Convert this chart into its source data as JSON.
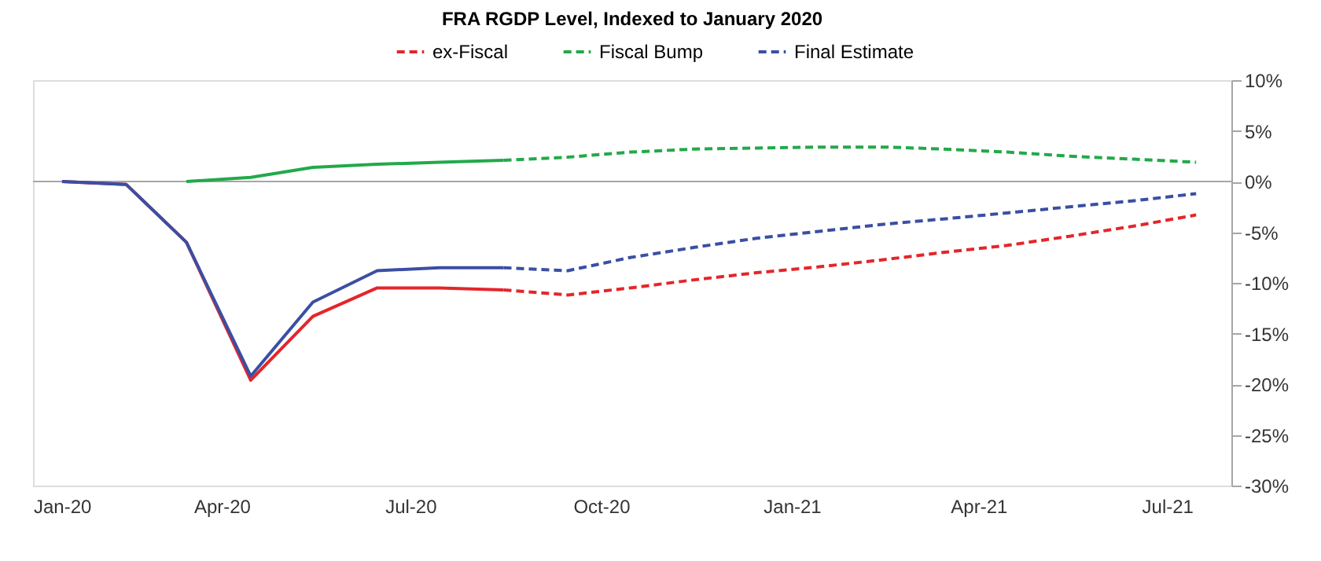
{
  "chart_data": {
    "type": "line",
    "title": "FRA RGDP Level, Indexed to January 2020",
    "series": [
      {
        "color": "#e3262b",
        "line_style": "solid",
        "x": [
          "2020-01-15",
          "2020-02-15",
          "2020-03-15",
          "2020-04-15",
          "2020-05-15",
          "2020-06-15",
          "2020-07-15",
          "2020-08-15"
        ],
        "values": [
          0,
          -0.3,
          -6.0,
          -19.6,
          -13.3,
          -10.5,
          -10.5,
          -10.7
        ]
      },
      {
        "color": "#22a94a",
        "line_style": "solid",
        "x": [
          "2020-03-15",
          "2020-04-15",
          "2020-05-15",
          "2020-06-15",
          "2020-07-15",
          "2020-08-15"
        ],
        "values": [
          0,
          0.4,
          1.4,
          1.7,
          1.9,
          2.1
        ]
      },
      {
        "color": "#3a4fa3",
        "line_style": "solid",
        "x": [
          "2020-01-15",
          "2020-02-15",
          "2020-03-15",
          "2020-04-15",
          "2020-05-15",
          "2020-06-15",
          "2020-07-15",
          "2020-08-15"
        ],
        "values": [
          0,
          -0.3,
          -6.0,
          -19.2,
          -11.9,
          -8.8,
          -8.5,
          -8.5
        ]
      },
      {
        "name": "ex-Fiscal",
        "color": "#e3262b",
        "line_style": "dashed",
        "x": [
          "2020-08-15",
          "2020-09-15",
          "2020-10-15",
          "2020-11-15",
          "2020-12-15",
          "2021-01-15",
          "2021-02-15",
          "2021-03-15",
          "2021-04-15",
          "2021-05-15",
          "2021-06-15",
          "2021-07-15"
        ],
        "values": [
          -10.7,
          -11.2,
          -10.5,
          -9.7,
          -9.0,
          -8.4,
          -7.7,
          -7.0,
          -6.3,
          -5.4,
          -4.4,
          -3.3
        ]
      },
      {
        "name": "Fiscal Bump",
        "color": "#22a94a",
        "line_style": "dashed",
        "x": [
          "2020-08-15",
          "2020-09-15",
          "2020-10-15",
          "2020-11-15",
          "2020-12-15",
          "2021-01-15",
          "2021-02-15",
          "2021-03-15",
          "2021-04-15",
          "2021-05-15",
          "2021-06-15",
          "2021-07-15"
        ],
        "values": [
          2.1,
          2.4,
          2.9,
          3.2,
          3.3,
          3.4,
          3.4,
          3.2,
          2.9,
          2.5,
          2.2,
          1.9
        ]
      },
      {
        "name": "Final Estimate",
        "color": "#3a4fa3",
        "line_style": "dashed",
        "x": [
          "2020-08-15",
          "2020-09-15",
          "2020-10-15",
          "2020-11-15",
          "2020-12-15",
          "2021-01-15",
          "2021-02-15",
          "2021-03-15",
          "2021-04-15",
          "2021-05-15",
          "2021-06-15",
          "2021-07-15"
        ],
        "values": [
          -8.5,
          -8.8,
          -7.5,
          -6.5,
          -5.6,
          -4.9,
          -4.2,
          -3.7,
          -3.1,
          -2.5,
          -1.9,
          -1.2
        ]
      }
    ],
    "xlim": [
      "2020-01-01",
      "2021-08-01"
    ],
    "xticks": [
      {
        "value": "2020-01-01",
        "label": "Jan-20"
      },
      {
        "value": "2020-04-01",
        "label": "Apr-20"
      },
      {
        "value": "2020-07-01",
        "label": "Jul-20"
      },
      {
        "value": "2020-10-01",
        "label": "Oct-20"
      },
      {
        "value": "2021-01-01",
        "label": "Jan-21"
      },
      {
        "value": "2021-04-01",
        "label": "Apr-21"
      },
      {
        "value": "2021-07-01",
        "label": "Jul-21"
      }
    ],
    "ylim": [
      -30,
      10
    ],
    "yticks": [
      {
        "value": -30,
        "label": "-30%"
      },
      {
        "value": -25,
        "label": "-25%"
      },
      {
        "value": -20,
        "label": "-20%"
      },
      {
        "value": -15,
        "label": "-15%"
      },
      {
        "value": -10,
        "label": "-10%"
      },
      {
        "value": -5,
        "label": "-5%"
      },
      {
        "value": 0,
        "label": "0%"
      },
      {
        "value": 5,
        "label": "5%"
      },
      {
        "value": 10,
        "label": "10%"
      }
    ],
    "ref_lines": [
      {
        "axis": "y",
        "value": 0,
        "color": "#a6a6a6",
        "line_style": "solid"
      }
    ],
    "grid": false,
    "legend": "top",
    "marker": "none"
  }
}
